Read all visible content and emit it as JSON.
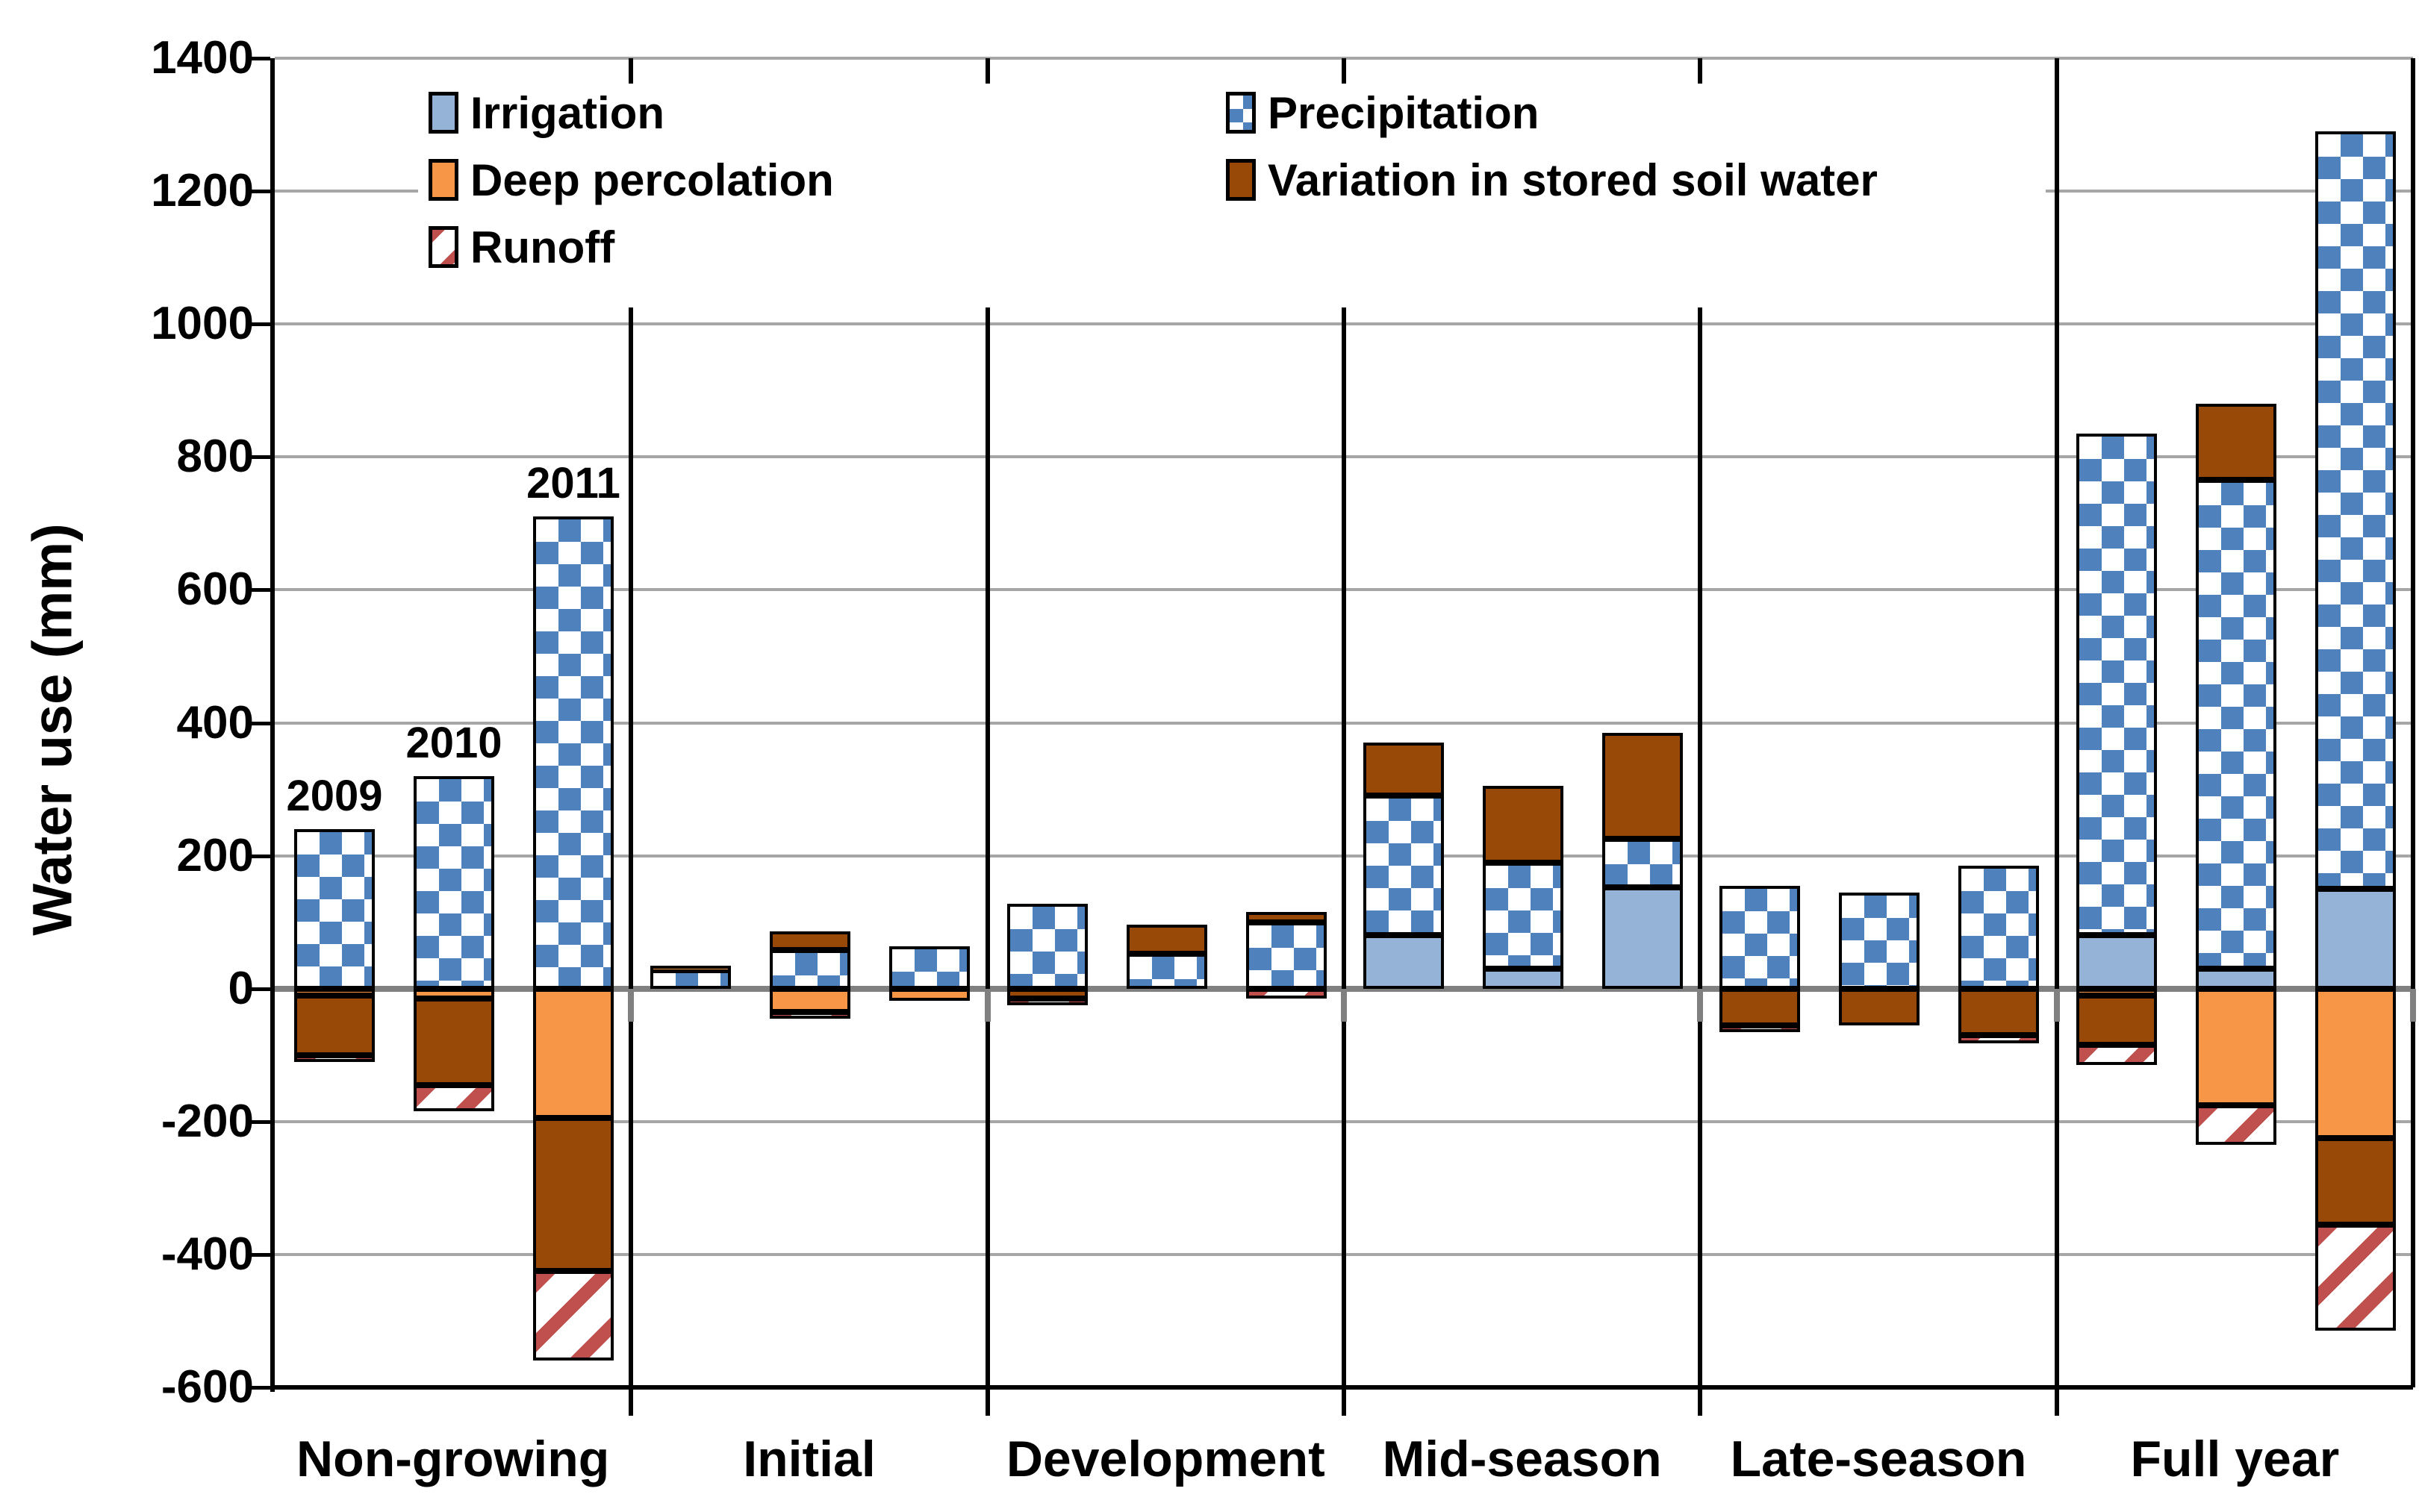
{
  "chart_data": {
    "type": "bar",
    "stacked": true,
    "title": "",
    "xlabel": "",
    "ylabel": "Water use (mm)",
    "ylim": [
      -600,
      1400
    ],
    "ytick_step": 200,
    "yticks": [
      1400,
      1200,
      1000,
      800,
      600,
      400,
      200,
      0,
      -200,
      -400,
      -600
    ],
    "grid": "horizontal",
    "legend_position": "top-inside",
    "categories": [
      "Non-growing",
      "Initial",
      "Development",
      "Mid-season",
      "Late-season",
      "Full year"
    ],
    "years": [
      "2009",
      "2010",
      "2011"
    ],
    "series_names": {
      "irrigation": "Irrigation",
      "precipitation": "Precipitation",
      "deep_percolation": "Deep percolation",
      "variation": "Variation in stored soil water",
      "runoff": "Runoff"
    },
    "bars": [
      {
        "category": "Non-growing",
        "year": "2009",
        "show_year_label": true,
        "pos": [
          {
            "series": "precipitation",
            "value": 240
          }
        ],
        "neg": [
          {
            "series": "deep_percolation",
            "value": 10
          },
          {
            "series": "variation",
            "value": 90
          },
          {
            "series": "runoff",
            "value": 10
          }
        ]
      },
      {
        "category": "Non-growing",
        "year": "2010",
        "show_year_label": true,
        "pos": [
          {
            "series": "precipitation",
            "value": 320
          }
        ],
        "neg": [
          {
            "series": "deep_percolation",
            "value": 15
          },
          {
            "series": "variation",
            "value": 130
          },
          {
            "series": "runoff",
            "value": 40
          }
        ]
      },
      {
        "category": "Non-growing",
        "year": "2011",
        "show_year_label": true,
        "pos": [
          {
            "series": "precipitation",
            "value": 710
          }
        ],
        "neg": [
          {
            "series": "deep_percolation",
            "value": 195
          },
          {
            "series": "variation",
            "value": 230
          },
          {
            "series": "runoff",
            "value": 135
          }
        ]
      },
      {
        "category": "Initial",
        "year": "2009",
        "show_year_label": false,
        "pos": [
          {
            "series": "precipitation",
            "value": 28
          },
          {
            "series": "deep_percolation",
            "value": 7
          }
        ],
        "neg": []
      },
      {
        "category": "Initial",
        "year": "2010",
        "show_year_label": false,
        "pos": [
          {
            "series": "precipitation",
            "value": 58
          },
          {
            "series": "variation",
            "value": 28
          }
        ],
        "neg": [
          {
            "series": "deep_percolation",
            "value": 35
          },
          {
            "series": "runoff",
            "value": 10
          }
        ]
      },
      {
        "category": "Initial",
        "year": "2011",
        "show_year_label": false,
        "pos": [
          {
            "series": "precipitation",
            "value": 64
          }
        ],
        "neg": [
          {
            "series": "deep_percolation",
            "value": 18
          }
        ]
      },
      {
        "category": "Development",
        "year": "2009",
        "show_year_label": false,
        "pos": [
          {
            "series": "precipitation",
            "value": 128
          }
        ],
        "neg": [
          {
            "series": "variation",
            "value": 15
          },
          {
            "series": "runoff",
            "value": 5
          }
        ]
      },
      {
        "category": "Development",
        "year": "2010",
        "show_year_label": false,
        "pos": [
          {
            "series": "precipitation",
            "value": 52
          },
          {
            "series": "variation",
            "value": 44
          }
        ],
        "neg": []
      },
      {
        "category": "Development",
        "year": "2011",
        "show_year_label": false,
        "pos": [
          {
            "series": "precipitation",
            "value": 100
          },
          {
            "series": "variation",
            "value": 15
          }
        ],
        "neg": [
          {
            "series": "runoff",
            "value": 15
          }
        ]
      },
      {
        "category": "Mid-season",
        "year": "2009",
        "show_year_label": false,
        "pos": [
          {
            "series": "irrigation",
            "value": 80
          },
          {
            "series": "precipitation",
            "value": 210
          },
          {
            "series": "variation",
            "value": 80
          }
        ],
        "neg": []
      },
      {
        "category": "Mid-season",
        "year": "2010",
        "show_year_label": false,
        "pos": [
          {
            "series": "irrigation",
            "value": 30
          },
          {
            "series": "precipitation",
            "value": 160
          },
          {
            "series": "variation",
            "value": 115
          }
        ],
        "neg": []
      },
      {
        "category": "Mid-season",
        "year": "2011",
        "show_year_label": false,
        "pos": [
          {
            "series": "irrigation",
            "value": 152
          },
          {
            "series": "precipitation",
            "value": 73
          },
          {
            "series": "variation",
            "value": 160
          }
        ],
        "neg": []
      },
      {
        "category": "Late-season",
        "year": "2009",
        "show_year_label": false,
        "pos": [
          {
            "series": "precipitation",
            "value": 155
          }
        ],
        "neg": [
          {
            "series": "variation",
            "value": 55
          },
          {
            "series": "runoff",
            "value": 10
          }
        ]
      },
      {
        "category": "Late-season",
        "year": "2010",
        "show_year_label": false,
        "pos": [
          {
            "series": "precipitation",
            "value": 145
          }
        ],
        "neg": [
          {
            "series": "variation",
            "value": 55
          }
        ]
      },
      {
        "category": "Late-season",
        "year": "2011",
        "show_year_label": false,
        "pos": [
          {
            "series": "precipitation",
            "value": 185
          }
        ],
        "neg": [
          {
            "series": "variation",
            "value": 70
          },
          {
            "series": "runoff",
            "value": 12
          }
        ]
      },
      {
        "category": "Full year",
        "year": "2009",
        "show_year_label": false,
        "pos": [
          {
            "series": "irrigation",
            "value": 80
          },
          {
            "series": "precipitation",
            "value": 755
          }
        ],
        "neg": [
          {
            "series": "deep_percolation",
            "value": 10
          },
          {
            "series": "variation",
            "value": 75
          },
          {
            "series": "runoff",
            "value": 30
          }
        ]
      },
      {
        "category": "Full year",
        "year": "2010",
        "show_year_label": false,
        "pos": [
          {
            "series": "irrigation",
            "value": 30
          },
          {
            "series": "precipitation",
            "value": 735
          },
          {
            "series": "variation",
            "value": 115
          }
        ],
        "neg": [
          {
            "series": "deep_percolation",
            "value": 175
          },
          {
            "series": "runoff",
            "value": 60
          }
        ]
      },
      {
        "category": "Full year",
        "year": "2011",
        "show_year_label": false,
        "pos": [
          {
            "series": "irrigation",
            "value": 150
          },
          {
            "series": "precipitation",
            "value": 1140
          }
        ],
        "neg": [
          {
            "series": "deep_percolation",
            "value": 225
          },
          {
            "series": "variation",
            "value": 130
          },
          {
            "series": "runoff",
            "value": 160
          }
        ]
      }
    ]
  },
  "legend": {
    "columns": [
      {
        "items": [
          {
            "series": "irrigation",
            "label": "Irrigation"
          },
          {
            "series": "deep_percolation",
            "label": "Deep percolation"
          },
          {
            "series": "runoff",
            "label": "Runoff"
          }
        ]
      },
      {
        "items": [
          {
            "series": "precipitation",
            "label": "Precipitation"
          },
          {
            "series": "variation",
            "label": "Variation in stored soil water"
          }
        ]
      }
    ]
  },
  "colors": {
    "irrigation": "#95B3D7",
    "precipitation_blue": "#4F81BD",
    "deep_percolation": "#F79646",
    "variation": "#984807",
    "runoff_red": "#C0504D",
    "pattern_background": "#FFFFFF",
    "gridline": "#A6A6A6",
    "zero_line": "#808080",
    "axis": "#000000"
  }
}
